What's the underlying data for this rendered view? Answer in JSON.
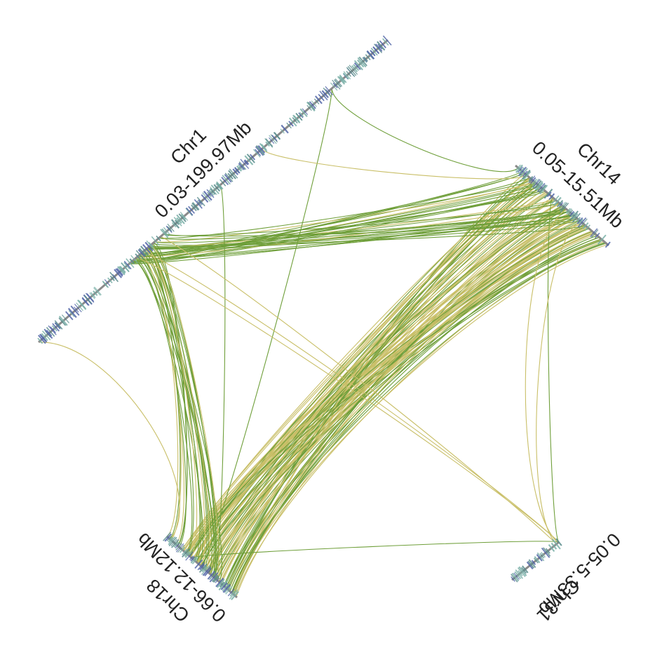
{
  "colors": {
    "link_green": "#6f9f3a",
    "link_yellow": "#c9bf68",
    "backbone": "#8a8a8a",
    "gene_a": "#5a8c8c",
    "gene_b": "#5266a8",
    "gene_c": "#7ab0a8"
  },
  "chromosomes": [
    {
      "id": "chr1",
      "name": "Chr1",
      "range": "0.03-199.97Mb"
    },
    {
      "id": "chr14",
      "name": "Chr14",
      "range": "0.05-15.51Mb"
    },
    {
      "id": "chr18",
      "name": "Chr18",
      "range": "0.66-12.12Mb"
    },
    {
      "id": "chr31",
      "name": "Chr31",
      "range": "0.05-5.33Mb"
    }
  ]
}
